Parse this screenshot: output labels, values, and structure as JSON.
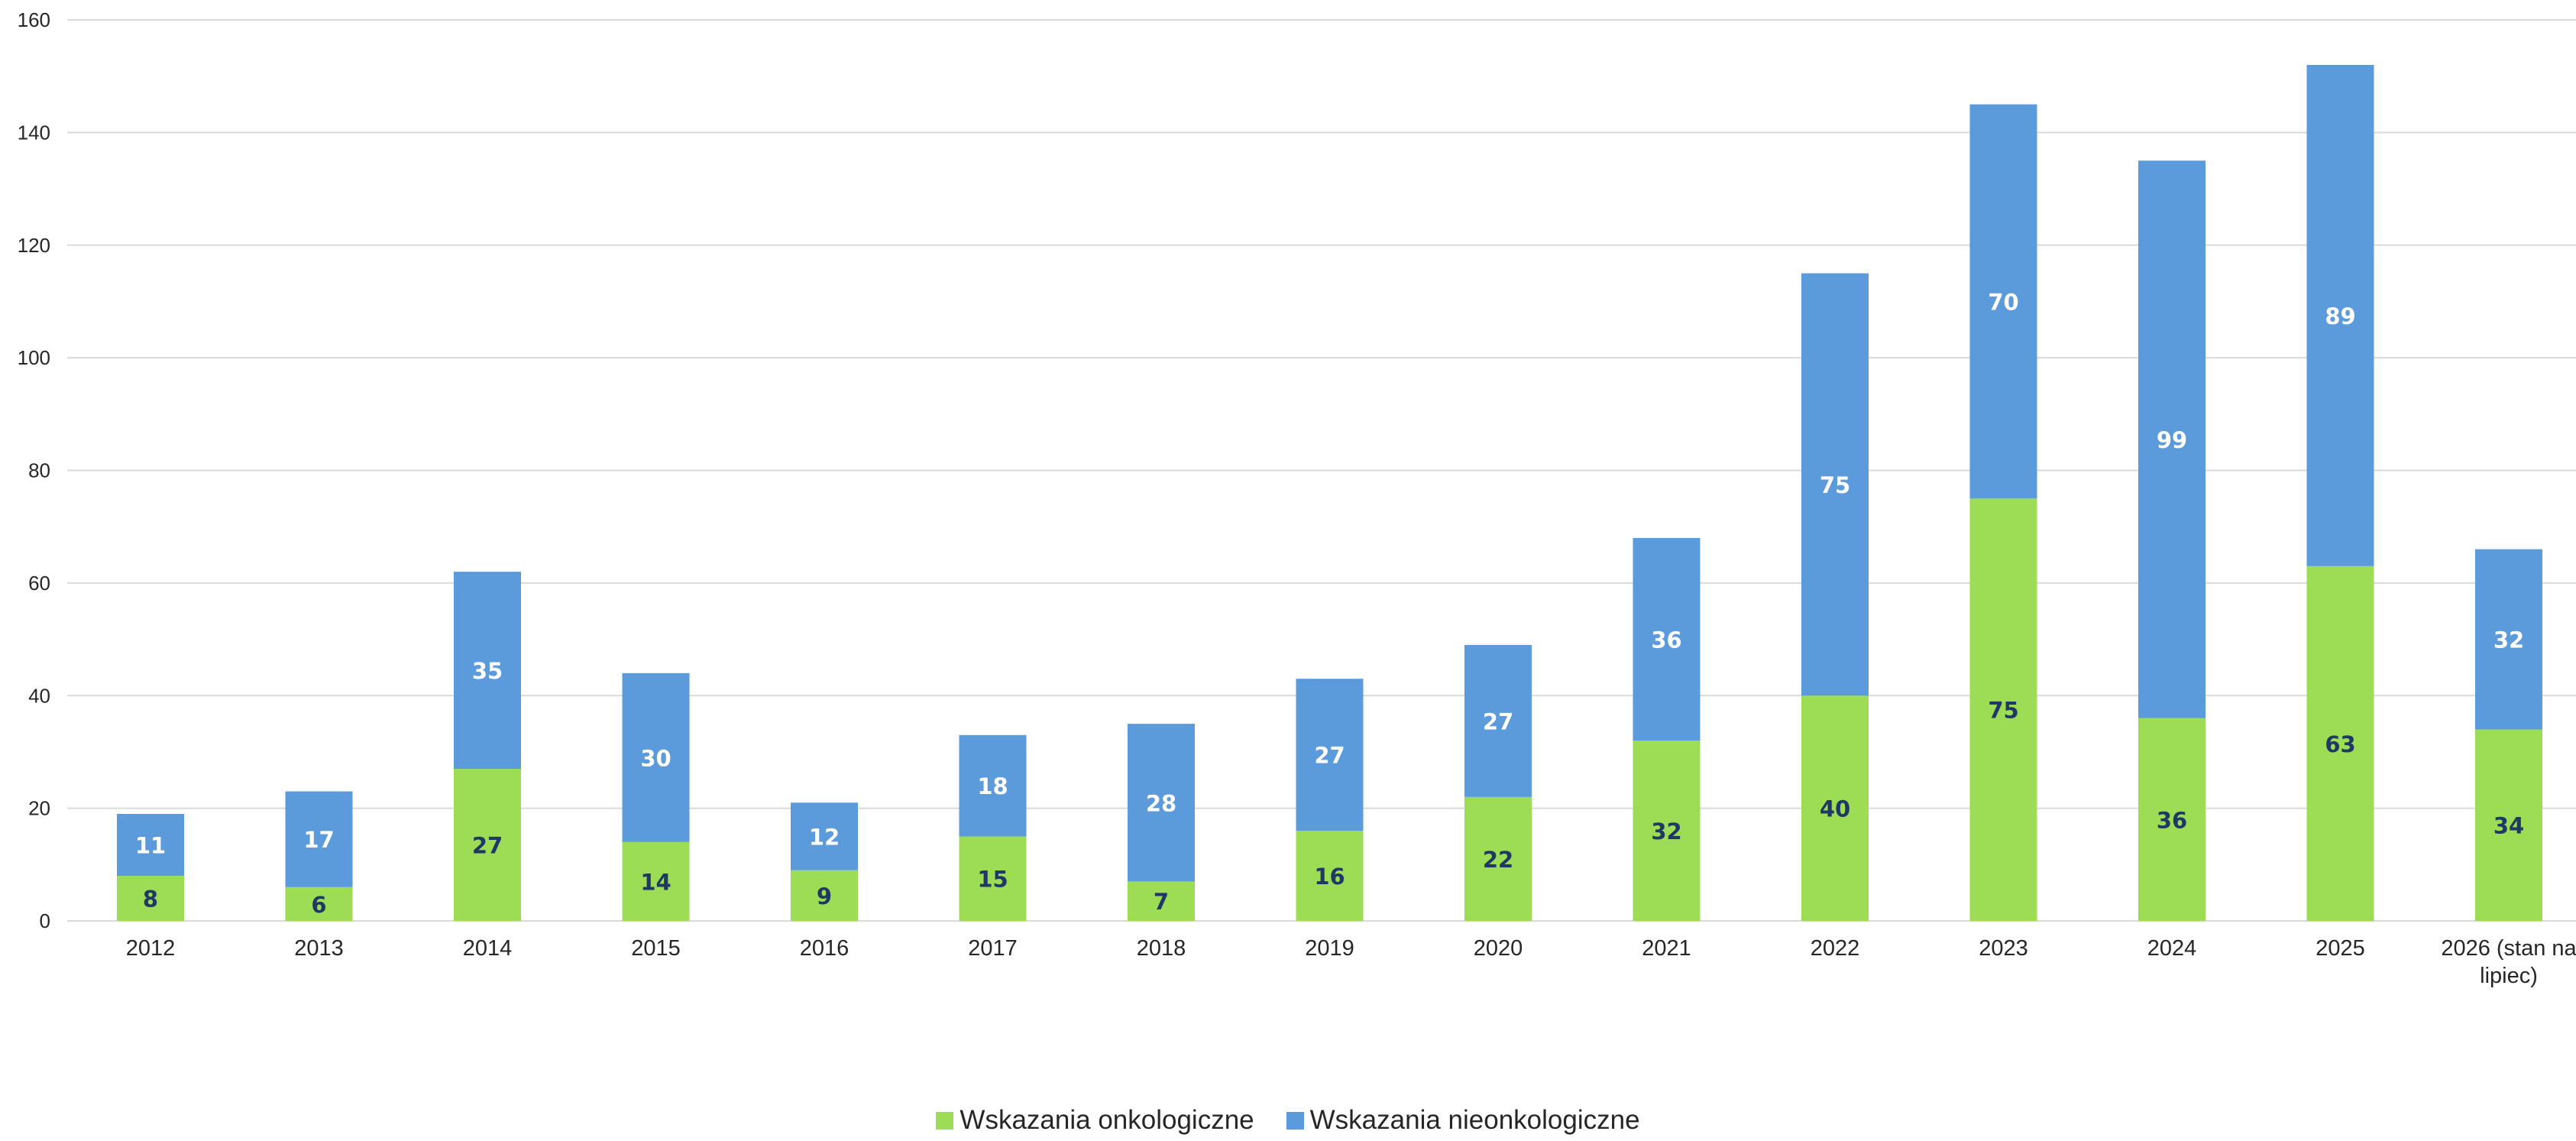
{
  "chart_data": {
    "type": "bar",
    "stacked": true,
    "categories": [
      "2012",
      "2013",
      "2014",
      "2015",
      "2016",
      "2017",
      "2018",
      "2019",
      "2020",
      "2021",
      "2022",
      "2023",
      "2024",
      "2025",
      "2026 (stan na lipiec)"
    ],
    "category_label_lines": [
      [
        "2012"
      ],
      [
        "2013"
      ],
      [
        "2014"
      ],
      [
        "2015"
      ],
      [
        "2016"
      ],
      [
        "2017"
      ],
      [
        "2018"
      ],
      [
        "2019"
      ],
      [
        "2020"
      ],
      [
        "2021"
      ],
      [
        "2022"
      ],
      [
        "2023"
      ],
      [
        "2024"
      ],
      [
        "2025"
      ],
      [
        "2026 (stan na",
        "lipiec)"
      ]
    ],
    "series": [
      {
        "name": "Wskazania onkologiczne",
        "color": "#9cdd55",
        "label_color": "#1f3864",
        "values": [
          8,
          6,
          27,
          14,
          9,
          15,
          7,
          16,
          22,
          32,
          40,
          75,
          36,
          63,
          34
        ]
      },
      {
        "name": "Wskazania nieonkologiczne",
        "color": "#5b9bdc",
        "label_color": "#ffffff",
        "values": [
          11,
          17,
          35,
          30,
          12,
          18,
          28,
          27,
          27,
          36,
          75,
          70,
          99,
          89,
          32
        ]
      }
    ],
    "ylim": [
      0,
      160
    ],
    "yticks": [
      0,
      20,
      40,
      60,
      80,
      100,
      120,
      140,
      160
    ],
    "grid": true,
    "legend_position": "bottom"
  }
}
